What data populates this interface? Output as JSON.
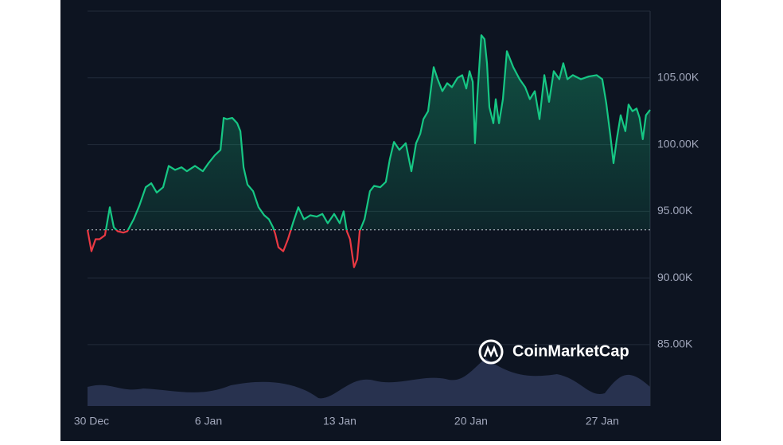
{
  "chart_data": {
    "type": "line",
    "watermark": "CoinMarketCap",
    "baseline": 93.6,
    "xlim": [
      0.55,
      30.55
    ],
    "xticks": [
      {
        "value": 0,
        "label": "30 Dec"
      },
      {
        "value": 7,
        "label": "6 Jan"
      },
      {
        "value": 14,
        "label": "13 Jan"
      },
      {
        "value": 21,
        "label": "20 Jan"
      },
      {
        "value": 28,
        "label": "27 Jan"
      }
    ],
    "ylim": [
      80.4,
      110
    ],
    "yticks": [
      {
        "value": 85,
        "label": "85.00K"
      },
      {
        "value": 90,
        "label": "90.00K"
      },
      {
        "value": 95,
        "label": "95.00K"
      },
      {
        "value": 100,
        "label": "100.00K"
      },
      {
        "value": 105,
        "label": "105.00K"
      }
    ],
    "grid": true,
    "colors": {
      "up": "#16c784",
      "down": "#ea3943"
    },
    "series": [
      {
        "x": [
          0.55,
          0.76,
          0.98,
          1.19,
          1.48,
          1.74,
          1.95,
          2.16,
          2.46,
          2.67,
          3.01,
          3.31,
          3.65,
          3.95,
          4.24,
          4.58,
          4.88,
          5.22,
          5.56,
          5.85,
          6.28,
          6.7,
          7.0,
          7.34,
          7.64,
          7.81,
          7.98,
          8.27,
          8.53,
          8.7,
          8.87,
          9.08,
          9.38,
          9.67,
          9.97,
          10.22,
          10.44,
          10.56,
          10.73,
          10.99,
          11.24,
          11.5,
          11.79,
          12.09,
          12.43,
          12.77,
          13.07,
          13.36,
          13.7,
          14.0,
          14.21,
          14.38,
          14.55,
          14.76,
          14.93,
          15.06,
          15.32,
          15.61,
          15.83,
          16.16,
          16.46,
          16.67,
          16.89,
          17.18,
          17.52,
          17.82,
          18.07,
          18.29,
          18.46,
          18.71,
          19.01,
          19.22,
          19.47,
          19.73,
          19.98,
          20.28,
          20.53,
          20.75,
          20.92,
          21.09,
          21.21,
          21.34,
          21.55,
          21.72,
          21.85,
          21.98,
          22.19,
          22.32,
          22.49,
          22.7,
          22.91,
          23.25,
          23.59,
          23.89,
          24.14,
          24.4,
          24.65,
          24.91,
          25.16,
          25.41,
          25.71,
          25.92,
          26.14,
          26.43,
          26.86,
          27.28,
          27.7,
          28.0,
          28.21,
          28.43,
          28.6,
          28.77,
          28.98,
          29.23,
          29.4,
          29.61,
          29.83,
          29.99,
          30.16,
          30.33,
          30.55
        ],
        "values": [
          93.6,
          92.0,
          92.9,
          92.9,
          93.2,
          95.3,
          93.8,
          93.5,
          93.4,
          93.5,
          94.4,
          95.4,
          96.8,
          97.1,
          96.4,
          96.8,
          98.4,
          98.1,
          98.3,
          98.0,
          98.4,
          98.0,
          98.6,
          99.2,
          99.6,
          102.0,
          101.9,
          102.0,
          101.6,
          101.0,
          98.3,
          97.0,
          96.5,
          95.3,
          94.7,
          94.4,
          93.8,
          93.3,
          92.3,
          92.0,
          92.9,
          94.1,
          95.3,
          94.4,
          94.7,
          94.6,
          94.8,
          94.1,
          94.8,
          94.1,
          95.0,
          93.5,
          92.9,
          90.8,
          91.4,
          93.5,
          94.4,
          96.5,
          96.9,
          96.8,
          97.2,
          98.9,
          100.2,
          99.6,
          100.1,
          98.0,
          100.1,
          100.8,
          101.9,
          102.5,
          105.8,
          104.9,
          104.0,
          104.6,
          104.3,
          105.0,
          105.2,
          104.2,
          105.5,
          104.7,
          100.1,
          103.7,
          108.2,
          107.9,
          106.1,
          102.8,
          101.6,
          103.4,
          101.6,
          103.4,
          107.0,
          105.8,
          104.9,
          104.3,
          103.4,
          104.0,
          101.9,
          105.2,
          103.2,
          105.5,
          104.9,
          106.1,
          104.9,
          105.2,
          104.9,
          105.1,
          105.2,
          104.9,
          103.1,
          100.7,
          98.6,
          100.4,
          102.2,
          101.0,
          103.0,
          102.5,
          102.7,
          102.0,
          100.4,
          102.2,
          102.6
        ]
      }
    ]
  }
}
